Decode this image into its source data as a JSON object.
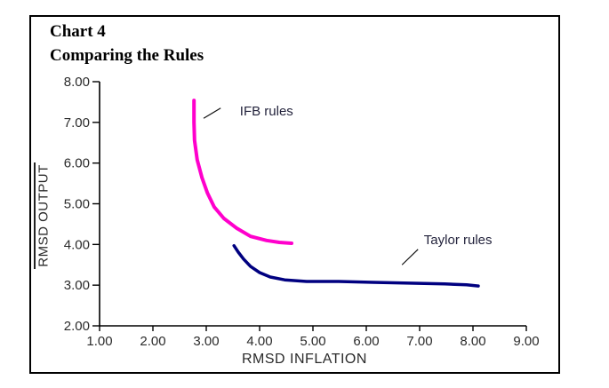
{
  "page": {
    "background": "#ffffff"
  },
  "frame": {
    "border_color": "#000000"
  },
  "title": {
    "line1": "Chart 4",
    "line2": "Comparing the Rules"
  },
  "chart_data": {
    "type": "line",
    "title": "Chart 4 - Comparing the Rules",
    "xlabel": "RMSD INFLATION",
    "ylabel": "RMSD OUTPUT",
    "xlim": [
      1.0,
      9.0
    ],
    "ylim": [
      2.0,
      8.0
    ],
    "x_ticks": [
      1,
      2,
      3,
      4,
      5,
      6,
      7,
      8,
      9
    ],
    "x_tick_labels": [
      "1.00",
      "2.00",
      "3.00",
      "4.00",
      "5.00",
      "6.00",
      "7.00",
      "8.00",
      "9.00"
    ],
    "y_ticks": [
      2,
      3,
      4,
      5,
      6,
      7,
      8
    ],
    "y_tick_labels": [
      "2.00",
      "3.00",
      "4.00",
      "5.00",
      "6.00",
      "7.00",
      "8.00"
    ],
    "grid": false,
    "legend_position": "none (inline annotations with leader lines)",
    "axis_color": "#000000",
    "tick_label_color": "#2b2b2b",
    "annotation_color": "#23233c",
    "series": [
      {
        "name": "IFB rules",
        "color": "#ff00cc",
        "stroke_width": 4,
        "points": [
          [
            2.77,
            7.54
          ],
          [
            2.77,
            7.0
          ],
          [
            2.78,
            6.56
          ],
          [
            2.83,
            6.08
          ],
          [
            2.92,
            5.64
          ],
          [
            3.02,
            5.27
          ],
          [
            3.15,
            4.92
          ],
          [
            3.33,
            4.64
          ],
          [
            3.57,
            4.4
          ],
          [
            3.83,
            4.2
          ],
          [
            4.13,
            4.1
          ],
          [
            4.37,
            4.05
          ],
          [
            4.6,
            4.03
          ]
        ]
      },
      {
        "name": "Taylor rules",
        "color": "#000080",
        "stroke_width": 3.5,
        "points": [
          [
            3.52,
            3.97
          ],
          [
            3.6,
            3.81
          ],
          [
            3.7,
            3.64
          ],
          [
            3.83,
            3.46
          ],
          [
            4.0,
            3.31
          ],
          [
            4.2,
            3.2
          ],
          [
            4.47,
            3.13
          ],
          [
            4.88,
            3.09
          ],
          [
            5.47,
            3.09
          ],
          [
            6.13,
            3.07
          ],
          [
            6.8,
            3.05
          ],
          [
            7.47,
            3.03
          ],
          [
            7.88,
            3.01
          ],
          [
            8.1,
            2.98
          ]
        ]
      }
    ],
    "annotations": [
      {
        "label": "IFB rules",
        "text_x": 3.63,
        "text_y": 7.28,
        "line_from": [
          2.95,
          7.1
        ],
        "line_to": [
          3.27,
          7.35
        ]
      },
      {
        "label": "Taylor rules",
        "text_x": 7.08,
        "text_y": 4.12,
        "line_from": [
          6.67,
          3.5
        ],
        "line_to": [
          6.97,
          3.88
        ]
      }
    ]
  }
}
